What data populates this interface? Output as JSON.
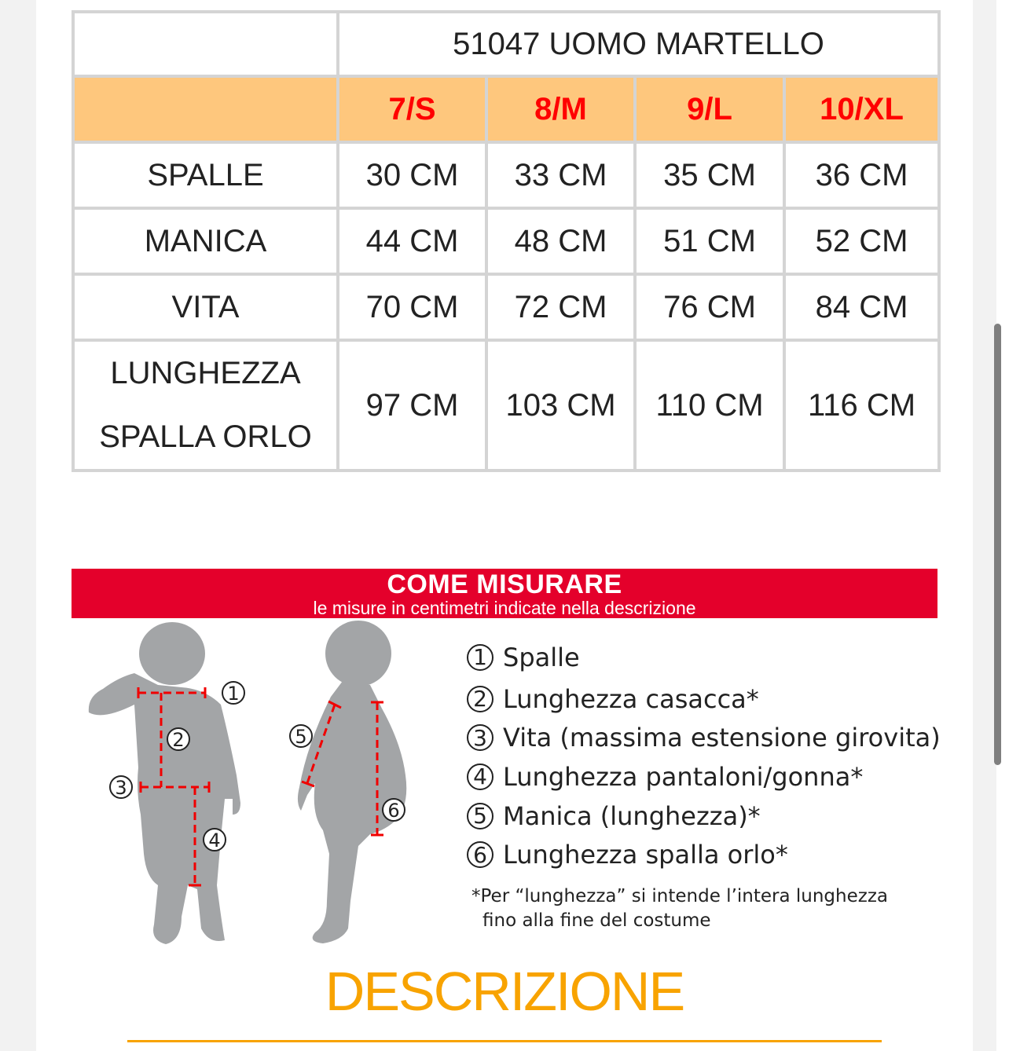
{
  "size_table": {
    "title": "51047 UOMO MARTELLO",
    "sizes": [
      "7/S",
      "8/M",
      "9/L",
      "10/XL"
    ],
    "rows": [
      {
        "label": "SPALLE",
        "values": [
          "30 CM",
          "33 CM",
          "35 CM",
          "36 CM"
        ]
      },
      {
        "label": "MANICA",
        "values": [
          "44 CM",
          "48 CM",
          "51 CM",
          "52 CM"
        ]
      },
      {
        "label": "VITA",
        "values": [
          "70 CM",
          "72 CM",
          "76 CM",
          "84 CM"
        ]
      },
      {
        "label": "LUNGHEZZA",
        "label2": "SPALLA ORLO",
        "values": [
          "97 CM",
          "103 CM",
          "110 CM",
          "116 CM"
        ]
      }
    ]
  },
  "how_to_measure": {
    "title": "COME MISURARE",
    "subtitle": "le misure in centimetri indicate nella descrizione",
    "items": [
      {
        "num": "1",
        "label": "Spalle"
      },
      {
        "num": "2",
        "label": "Lunghezza casacca*"
      },
      {
        "num": "3",
        "label": "Vita (massima estensione girovita)"
      },
      {
        "num": "4",
        "label": "Lunghezza pantaloni/gonna*"
      },
      {
        "num": "5",
        "label": "Manica (lunghezza)*"
      },
      {
        "num": "6",
        "label": "Lunghezza spalla orlo*"
      }
    ],
    "note_line1": "*Per “lunghezza” si intende l’intera lunghezza",
    "note_line2": "fino alla fine del costume",
    "colors": {
      "banner": "#e4002b",
      "silhouette": "#a3a5a7",
      "measure_line": "#f00000"
    }
  },
  "description_heading": "DESCRIZIONE",
  "colors": {
    "header_bg": "#fec77d",
    "size_text": "#ff0000",
    "title_text": "#fdc57c",
    "accent": "#f8a300"
  }
}
